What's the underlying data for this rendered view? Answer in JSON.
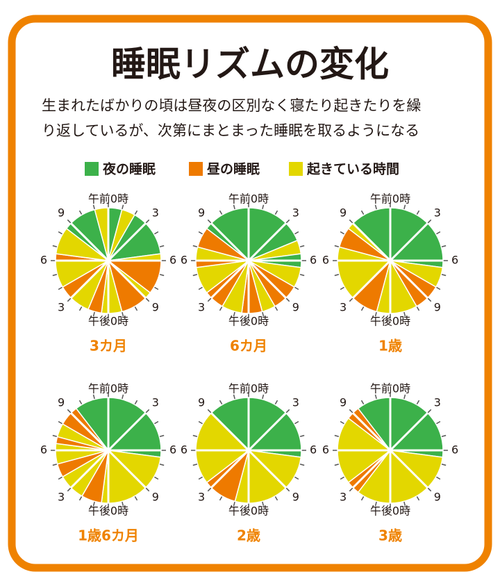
{
  "title": "睡眠リズムの変化",
  "description": [
    "生まれたばかりの頃は昼夜の区別なく寝たり起きたりを繰",
    "り返しているが、次第にまとまった睡眠を取るようになる"
  ],
  "legend": {
    "labels": [
      "夜の睡眠",
      "昼の睡眠",
      "起きている時間"
    ],
    "colors": [
      "#3cb14a",
      "#ee7a00",
      "#e3d700"
    ]
  },
  "clock_labels": [
    "午前0時",
    "3",
    "6",
    "9",
    "午後0時",
    "3",
    "6",
    "9"
  ],
  "chart_data": [
    {
      "type": "pie",
      "title": "3カ月",
      "categories": [
        "夜の睡眠",
        "起きている時間",
        "夜の睡眠",
        "起きている時間",
        "昼の睡眠",
        "起きている時間",
        "昼の睡眠",
        "起きている時間",
        "昼の睡眠",
        "起きている時間",
        "昼の睡眠",
        "起きている時間",
        "昼の睡眠",
        "起きている時間",
        "夜の睡眠",
        "起きている時間"
      ],
      "values": [
        1,
        1,
        3.5,
        0.5,
        2.5,
        0.5,
        2,
        1.5,
        1,
        1.5,
        1,
        2,
        0.5,
        2,
        2.5,
        1
      ]
    },
    {
      "type": "pie",
      "title": "6カ月",
      "categories": [
        "夜の睡眠",
        "起きている時間",
        "夜の睡眠",
        "起きている時間",
        "昼の睡眠",
        "起きている時間",
        "昼の睡眠",
        "起きている時間",
        "昼の睡眠",
        "起きている時間",
        "昼の睡眠",
        "起きている時間",
        "昼の睡眠",
        "夜の睡眠"
      ],
      "values": [
        4.5,
        1,
        1,
        1.5,
        2,
        1,
        1.5,
        1.5,
        1.5,
        2,
        0.5,
        1,
        1.5,
        3.5
      ]
    },
    {
      "type": "pie",
      "title": "1歳",
      "categories": [
        "夜の睡眠",
        "起きている時間",
        "昼の睡眠",
        "起きている時間",
        "昼の睡眠",
        "起きている時間",
        "昼の睡眠",
        "起きている時間",
        "夜の睡眠"
      ],
      "values": [
        6.5,
        1.5,
        2,
        3,
        2,
        4,
        1.5,
        0.5,
        3
      ]
    },
    {
      "type": "pie",
      "title": "1歳6カ月",
      "categories": [
        "夜の睡眠",
        "起きている時間",
        "昼の睡眠",
        "起きている時間",
        "昼の睡眠",
        "起きている時間",
        "昼の睡眠",
        "起きている時間",
        "昼の睡眠",
        "夜の睡眠"
      ],
      "values": [
        6.5,
        6,
        1.5,
        2,
        1,
        1.5,
        0.5,
        1,
        1.5,
        2.5
      ]
    },
    {
      "type": "pie",
      "title": "2歳",
      "categories": [
        "夜の睡眠",
        "起きている時間",
        "昼の睡眠",
        "起きている時間",
        "夜の睡眠"
      ],
      "values": [
        6.5,
        6.5,
        2.5,
        5.5,
        3
      ]
    },
    {
      "type": "pie",
      "title": "3歳",
      "categories": [
        "夜の睡眠",
        "起きている時間",
        "昼の睡眠",
        "起きている時間",
        "昼の睡眠",
        "夜の睡眠"
      ],
      "values": [
        6.5,
        8,
        1,
        5,
        1,
        2.5
      ]
    }
  ]
}
